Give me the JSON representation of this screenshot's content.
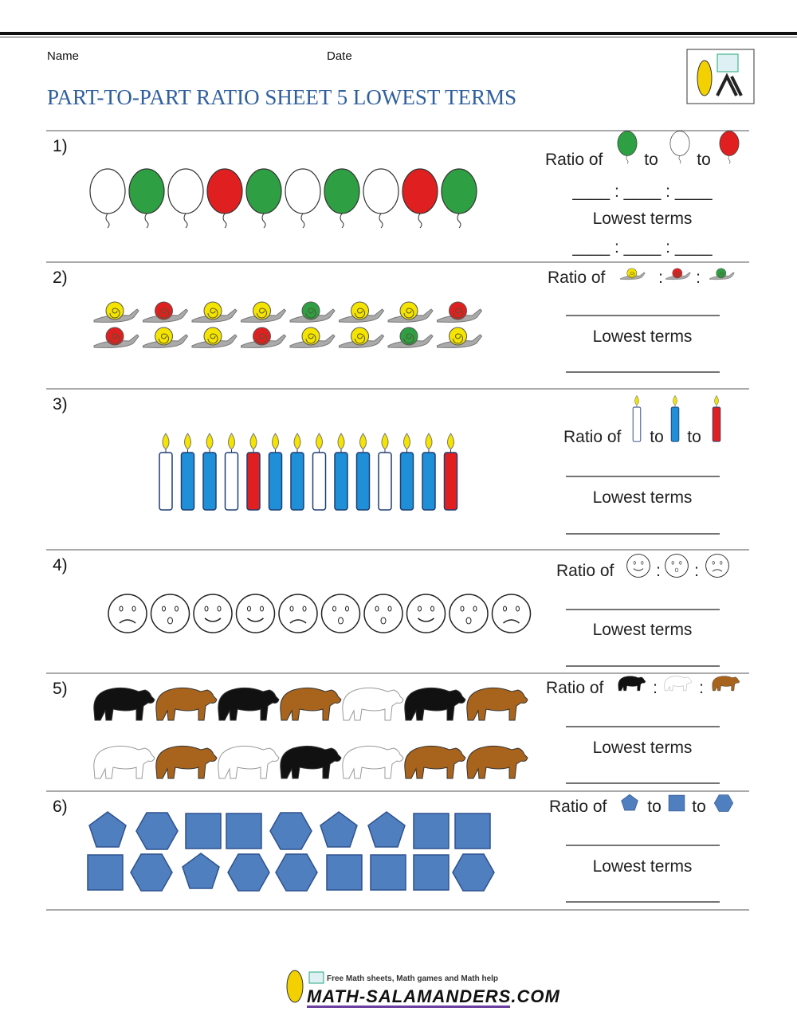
{
  "header": {
    "name_label": "Name",
    "date_label": "Date",
    "title": "PART-TO-PART RATIO SHEET 5 LOWEST TERMS"
  },
  "problems": [
    {
      "number": "1)",
      "prompt": "Ratio of",
      "separators": [
        "to",
        "to"
      ],
      "answer_blank": "____ : ____ : ____",
      "answer_label": "Lowest terms",
      "lowest_blank": "____ : ____ : ____"
    },
    {
      "number": "2)",
      "prompt": "Ratio of",
      "separators": [
        ":",
        ":"
      ],
      "answer_label": "Lowest terms"
    },
    {
      "number": "3)",
      "prompt": "Ratio of",
      "separators": [
        "to",
        "to"
      ],
      "answer_label": "Lowest terms"
    },
    {
      "number": "4)",
      "prompt": "Ratio of",
      "separators": [
        ":",
        ":"
      ],
      "answer_label": "Lowest terms"
    },
    {
      "number": "5)",
      "prompt": "Ratio of",
      "separators": [
        ":",
        ":"
      ],
      "answer_label": "Lowest terms"
    },
    {
      "number": "6)",
      "prompt": "Ratio of",
      "separators": [
        "to",
        "to"
      ],
      "answer_label": "Lowest terms"
    }
  ],
  "footer": {
    "tagline": "Free Math sheets, Math games and Math help",
    "site": "MATH-SALAMANDERS.COM"
  }
}
